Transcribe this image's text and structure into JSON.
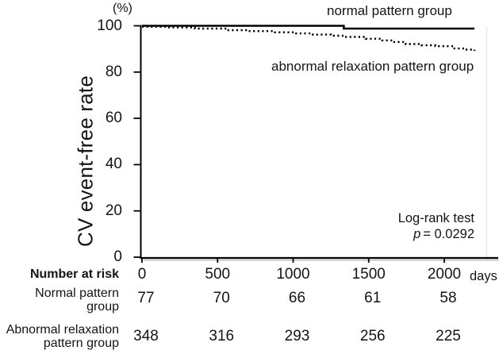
{
  "chart_data": {
    "type": "line",
    "subtype": "kaplan-meier-step",
    "title": "",
    "ylabel": "CV event-free rate",
    "y_unit": "(%)",
    "x_unit": "days",
    "xlim": [
      0,
      2360
    ],
    "ylim": [
      0,
      100
    ],
    "x_ticks": [
      0,
      500,
      1000,
      1500,
      2000
    ],
    "y_ticks": [
      0,
      20,
      40,
      60,
      80,
      100
    ],
    "grid": false,
    "series": [
      {
        "name": "normal pattern group",
        "style": "solid",
        "points": [
          [
            0,
            100
          ],
          [
            1335,
            98.8
          ],
          [
            2200,
            98.8
          ]
        ]
      },
      {
        "name": "abnormal relaxation pattern group",
        "style": "dotted",
        "points": [
          [
            0,
            99.6
          ],
          [
            180,
            99.3
          ],
          [
            350,
            98.8
          ],
          [
            560,
            98.1
          ],
          [
            700,
            97.7
          ],
          [
            880,
            97.2
          ],
          [
            1020,
            96.7
          ],
          [
            1130,
            96.2
          ],
          [
            1250,
            95.7
          ],
          [
            1340,
            95.2
          ],
          [
            1480,
            94.4
          ],
          [
            1590,
            93.7
          ],
          [
            1660,
            93.0
          ],
          [
            1745,
            92.1
          ],
          [
            1850,
            91.6
          ],
          [
            1940,
            91.2
          ],
          [
            2060,
            90.2
          ],
          [
            2140,
            89.7
          ],
          [
            2200,
            89.2
          ]
        ]
      }
    ],
    "annotation": {
      "test_name": "Log-rank test",
      "p_symbol": "p",
      "p_value": "= 0.0292"
    },
    "number_at_risk": {
      "header": "Number at risk",
      "timepoints": [
        0,
        500,
        1000,
        1500,
        2000
      ],
      "rows": [
        {
          "label": "Normal pattern\ngroup",
          "values": [
            77,
            70,
            66,
            61,
            58
          ]
        },
        {
          "label": "Abnormal relaxation\npattern group",
          "values": [
            348,
            316,
            293,
            256,
            225
          ]
        }
      ]
    }
  }
}
